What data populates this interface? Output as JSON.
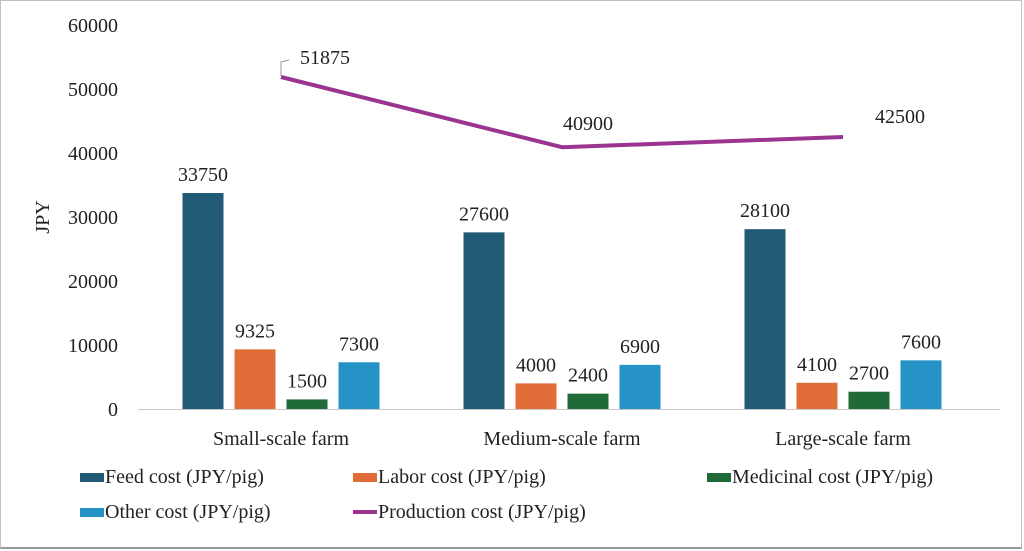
{
  "chart_data": {
    "type": "bar",
    "title": "",
    "xlabel": "",
    "ylabel": "JPY",
    "ylim": [
      0,
      60000
    ],
    "yticks": [
      0,
      10000,
      20000,
      30000,
      40000,
      50000,
      60000
    ],
    "grid": false,
    "legend_position": "bottom",
    "categories": [
      "Small-scale farm",
      "Medium-scale farm",
      "Large-scale farm"
    ],
    "series": [
      {
        "name": "Feed cost (JPY/pig)",
        "type": "bar",
        "color": "#215a74",
        "values": [
          33750,
          27600,
          28100
        ]
      },
      {
        "name": "Labor cost (JPY/pig)",
        "type": "bar",
        "color": "#e06c37",
        "values": [
          9325,
          4000,
          4100
        ]
      },
      {
        "name": "Medicinal cost (JPY/pig)",
        "type": "bar",
        "color": "#1f6a37",
        "values": [
          1500,
          2400,
          2700
        ]
      },
      {
        "name": "Other cost (JPY/pig)",
        "type": "bar",
        "color": "#2592c5",
        "values": [
          7300,
          6900,
          7600
        ]
      },
      {
        "name": "Production cost (JPY/pig)",
        "type": "line",
        "color": "#9b3391",
        "values": [
          51875,
          40900,
          42500
        ]
      }
    ]
  }
}
